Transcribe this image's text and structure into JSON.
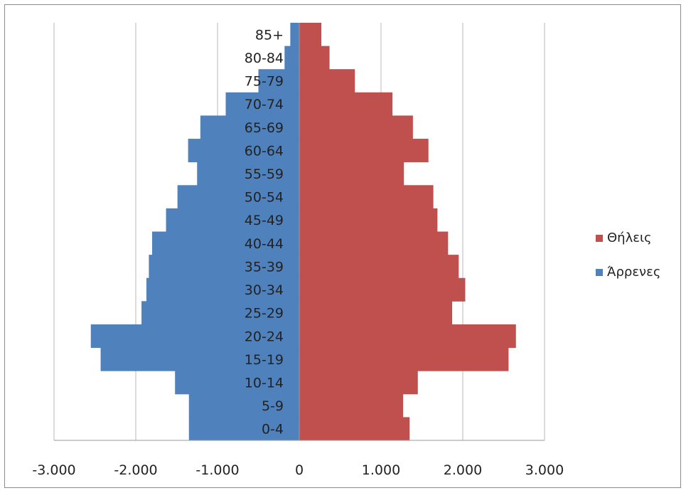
{
  "chart_data": {
    "type": "bar",
    "orientation": "horizontal",
    "layout": "population-pyramid",
    "categories": [
      "0-4",
      "5-9",
      "10-14",
      "15-19",
      "20-24",
      "25-29",
      "30-34",
      "35-39",
      "40-44",
      "45-49",
      "50-54",
      "55-59",
      "60-64",
      "65-69",
      "70-74",
      "75-79",
      "80-84",
      "85+"
    ],
    "series": [
      {
        "name": "Θήλεις",
        "color": "#c0504d",
        "values": [
          1350,
          1270,
          1450,
          2560,
          2650,
          1870,
          2030,
          1950,
          1820,
          1690,
          1640,
          1280,
          1580,
          1390,
          1140,
          680,
          370,
          270
        ]
      },
      {
        "name": "Άρρενες",
        "color": "#4f81bd",
        "values": [
          -1350,
          -1350,
          -1520,
          -2430,
          -2550,
          -1930,
          -1870,
          -1840,
          -1800,
          -1630,
          -1490,
          -1250,
          -1360,
          -1210,
          -900,
          -500,
          -180,
          -110
        ]
      }
    ],
    "xlim": [
      -3000,
      3000
    ],
    "xticks": [
      -3000,
      -2000,
      -1000,
      0,
      1000,
      2000,
      3000
    ],
    "xtick_labels": [
      "-3.000",
      "-2.000",
      "-1.000",
      "0",
      "1.000",
      "2.000",
      "3.000"
    ],
    "grid": true,
    "legend": "right",
    "title": "",
    "xlabel": "",
    "ylabel": ""
  }
}
